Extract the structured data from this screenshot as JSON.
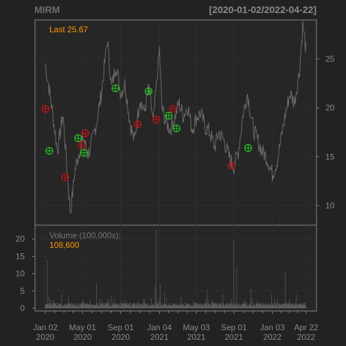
{
  "chart_data": {
    "type": "line",
    "title": "MIRM",
    "date_range_label": "[2020-01-02/2022-04-22]",
    "last_label": "Last 25.67",
    "colors": {
      "background": "#222222",
      "panel": "#2a2a2a",
      "frame": "#8a8a8a",
      "price_line": "#6c6c6c",
      "volume_bar": "#5e5e5e",
      "label_text": "#8a8a8a",
      "highlight": "#ff9900",
      "buy_marker": "#22cc22",
      "sell_marker": "#cc1111"
    },
    "x_axis": {
      "start": "2020-01-02",
      "end": "2022-04-22",
      "ticks": [
        {
          "date": "2020-01-02",
          "line1": "Jan 02",
          "line2": "2020"
        },
        {
          "date": "2020-05-01",
          "line1": "May 01",
          "line2": "2020"
        },
        {
          "date": "2020-09-01",
          "line1": "Sep 01",
          "line2": "2020"
        },
        {
          "date": "2021-01-04",
          "line1": "Jan 04",
          "line2": "2021"
        },
        {
          "date": "2021-05-03",
          "line1": "May 03",
          "line2": "2021"
        },
        {
          "date": "2021-09-01",
          "line1": "Sep 01",
          "line2": "2021"
        },
        {
          "date": "2022-01-03",
          "line1": "Jan 03",
          "line2": "2022"
        },
        {
          "date": "2022-04-22",
          "line1": "Apr 22",
          "line2": "2022"
        }
      ]
    },
    "price_panel": {
      "ylim": [
        8,
        29
      ],
      "yticks": [
        10,
        15,
        20,
        25
      ],
      "series_name": "Close",
      "x": [
        "2020-01-02",
        "2020-01-20",
        "2020-02-10",
        "2020-02-28",
        "2020-03-16",
        "2020-03-23",
        "2020-04-06",
        "2020-04-20",
        "2020-05-04",
        "2020-05-18",
        "2020-06-01",
        "2020-06-15",
        "2020-07-01",
        "2020-07-20",
        "2020-08-03",
        "2020-08-17",
        "2020-09-01",
        "2020-09-15",
        "2020-10-01",
        "2020-10-15",
        "2020-11-02",
        "2020-11-16",
        "2020-12-01",
        "2020-12-15",
        "2021-01-04",
        "2021-01-12",
        "2021-01-25",
        "2021-02-08",
        "2021-02-22",
        "2021-03-08",
        "2021-03-22",
        "2021-04-05",
        "2021-04-19",
        "2021-05-03",
        "2021-05-17",
        "2021-06-01",
        "2021-06-15",
        "2021-07-01",
        "2021-07-15",
        "2021-08-02",
        "2021-08-16",
        "2021-09-01",
        "2021-09-15",
        "2021-10-01",
        "2021-10-15",
        "2021-11-01",
        "2021-11-15",
        "2021-12-01",
        "2021-12-15",
        "2022-01-03",
        "2022-01-18",
        "2022-02-01",
        "2022-02-15",
        "2022-03-01",
        "2022-03-15",
        "2022-04-01",
        "2022-04-11",
        "2022-04-22"
      ],
      "values": [
        24.5,
        20.8,
        15.6,
        19.4,
        12.0,
        9.2,
        13.5,
        15.5,
        17.0,
        15.2,
        16.5,
        18.5,
        21.5,
        27.0,
        22.0,
        24.5,
        21.5,
        22.5,
        18.5,
        16.5,
        21.0,
        19.5,
        22.0,
        18.5,
        26.0,
        20.0,
        18.5,
        17.8,
        19.0,
        20.5,
        19.2,
        20.2,
        17.8,
        19.0,
        19.5,
        18.0,
        17.5,
        16.0,
        17.5,
        16.5,
        15.0,
        14.0,
        15.5,
        19.5,
        21.5,
        18.0,
        16.8,
        15.5,
        15.0,
        13.2,
        14.5,
        17.0,
        19.5,
        21.5,
        20.5,
        24.0,
        28.5,
        25.67
      ],
      "markers": [
        {
          "date": "2020-01-03",
          "price": 19.9,
          "type": "sell"
        },
        {
          "date": "2020-01-15",
          "price": 15.6,
          "type": "buy"
        },
        {
          "date": "2020-03-05",
          "price": 12.9,
          "type": "sell"
        },
        {
          "date": "2020-04-17",
          "price": 16.9,
          "type": "buy"
        },
        {
          "date": "2020-04-28",
          "price": 16.2,
          "type": "sell"
        },
        {
          "date": "2020-05-06",
          "price": 15.4,
          "type": "buy"
        },
        {
          "date": "2020-05-10",
          "price": 17.4,
          "type": "sell"
        },
        {
          "date": "2020-08-15",
          "price": 22.0,
          "type": "buy"
        },
        {
          "date": "2020-10-26",
          "price": 18.3,
          "type": "sell"
        },
        {
          "date": "2020-11-30",
          "price": 21.7,
          "type": "buy"
        },
        {
          "date": "2020-12-25",
          "price": 18.8,
          "type": "sell"
        },
        {
          "date": "2021-02-03",
          "price": 19.2,
          "type": "buy"
        },
        {
          "date": "2021-02-17",
          "price": 19.9,
          "type": "sell"
        },
        {
          "date": "2021-02-28",
          "price": 17.9,
          "type": "buy"
        },
        {
          "date": "2021-08-24",
          "price": 14.1,
          "type": "sell"
        },
        {
          "date": "2021-10-17",
          "price": 15.9,
          "type": "buy"
        }
      ]
    },
    "volume_panel": {
      "label": "Volume (100,000s):",
      "last_value": "108,600",
      "ylim": [
        0,
        24
      ],
      "yticks": [
        0,
        5,
        10,
        15,
        20
      ],
      "baseline": 1.0,
      "spikes": [
        {
          "date": "2020-01-09",
          "value": 13.8
        },
        {
          "date": "2020-02-24",
          "value": 4.2
        },
        {
          "date": "2020-03-16",
          "value": 3.5
        },
        {
          "date": "2020-05-04",
          "value": 2.0
        },
        {
          "date": "2020-06-15",
          "value": 7.1
        },
        {
          "date": "2020-07-21",
          "value": 3.0
        },
        {
          "date": "2020-09-15",
          "value": 2.2
        },
        {
          "date": "2020-11-16",
          "value": 2.8
        },
        {
          "date": "2020-12-21",
          "value": 6.5
        },
        {
          "date": "2020-12-24",
          "value": 23.0
        },
        {
          "date": "2021-01-07",
          "value": 7.0
        },
        {
          "date": "2021-01-20",
          "value": 4.5
        },
        {
          "date": "2021-03-15",
          "value": 3.5
        },
        {
          "date": "2021-06-07",
          "value": 5.5
        },
        {
          "date": "2021-07-28",
          "value": 4.0
        },
        {
          "date": "2021-08-31",
          "value": 19.5
        },
        {
          "date": "2021-09-10",
          "value": 12.0
        },
        {
          "date": "2021-10-26",
          "value": 5.5
        },
        {
          "date": "2022-02-14",
          "value": 10.5
        },
        {
          "date": "2022-03-21",
          "value": 4.0
        }
      ]
    }
  }
}
